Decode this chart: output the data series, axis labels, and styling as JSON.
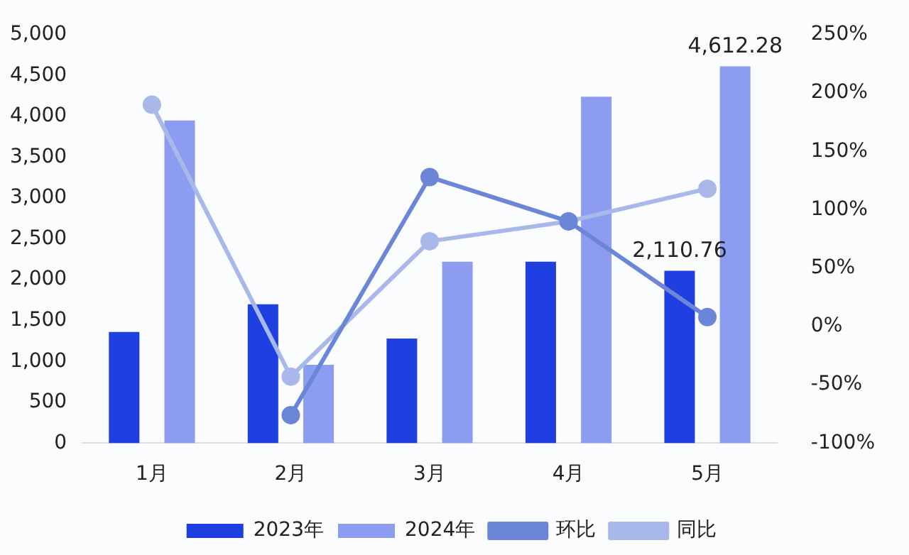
{
  "chart_data": {
    "type": "bar",
    "categories": [
      "1月",
      "2月",
      "3月",
      "4月",
      "5月"
    ],
    "series": [
      {
        "name": "2023年",
        "color": "#1f3fe0",
        "values": [
          1360,
          1700,
          1280,
          2220,
          2110.76
        ],
        "value_labels": [
          null,
          null,
          null,
          null,
          "2,110.76"
        ]
      },
      {
        "name": "2024年",
        "color": "#8c9cf0",
        "values": [
          3950,
          960,
          2220,
          4240,
          4612.28
        ],
        "value_labels": [
          null,
          null,
          null,
          null,
          "4,612.28"
        ]
      },
      {
        "name": "环比",
        "type": "line",
        "axis": "y2",
        "color": "#6b86d6",
        "values": [
          null,
          -76,
          128,
          90,
          8
        ]
      },
      {
        "name": "同比",
        "type": "line",
        "axis": "y2",
        "color": "#a9b8ea",
        "values": [
          190,
          -43,
          73,
          90,
          118
        ]
      }
    ],
    "ylim": [
      0,
      5000
    ],
    "yticks": [
      0,
      500,
      {
        "value": 1000,
        "label": "1,000"
      },
      {
        "value": 1500,
        "label": "1,500"
      },
      {
        "value": 2000,
        "label": "2,000"
      },
      {
        "value": 2500,
        "label": "2,500"
      },
      {
        "value": 3000,
        "label": "3,000"
      },
      {
        "value": 3500,
        "label": "3,500"
      },
      {
        "value": 4000,
        "label": "4,000"
      },
      {
        "value": 4500,
        "label": "4,500"
      },
      {
        "value": 5000,
        "label": "5,000"
      }
    ],
    "y2lim": [
      -100,
      250
    ],
    "y2ticks": [
      {
        "value": -100,
        "label": "-100%"
      },
      {
        "value": -50,
        "label": "-50%"
      },
      {
        "value": 0,
        "label": "0%"
      },
      {
        "value": 50,
        "label": "50%"
      },
      {
        "value": 100,
        "label": "100%"
      },
      {
        "value": 150,
        "label": "150%"
      },
      {
        "value": 200,
        "label": "200%"
      },
      {
        "value": 250,
        "label": "250%"
      }
    ],
    "grid": false,
    "legend": "bottom",
    "marker": "circle",
    "line_style": "solid"
  }
}
